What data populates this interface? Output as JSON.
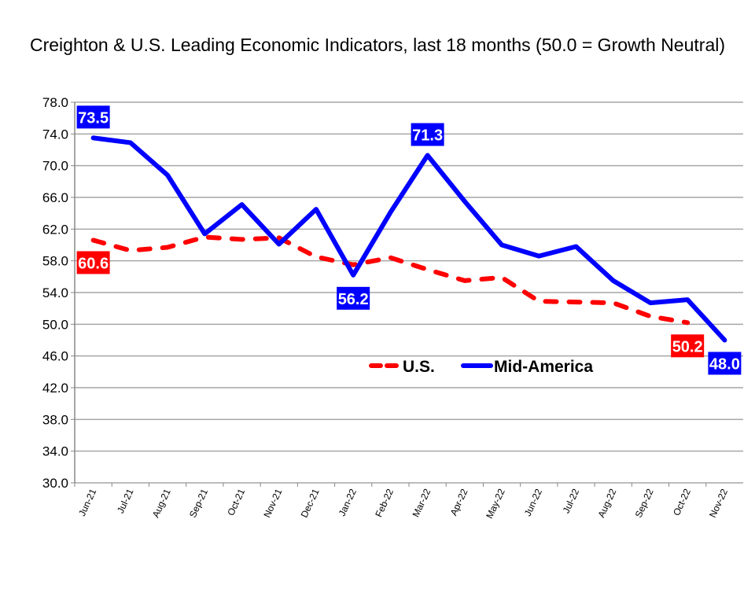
{
  "chart_data": {
    "type": "line",
    "title": "Creighton & U.S. Leading Economic Indicators, last 18 months (50.0 = Growth Neutral)",
    "categories": [
      "Jun-21",
      "Jul-21",
      "Aug-21",
      "Sep-21",
      "Oct-21",
      "Nov-21",
      "Dec-21",
      "Jan-22",
      "Feb-22",
      "Mar-22",
      "Apr-22",
      "May-22",
      "Jun-22",
      "Jul-22",
      "Aug-22",
      "Sep-22",
      "Oct-22",
      "Nov-22"
    ],
    "ylim": [
      30,
      78
    ],
    "yticks": [
      "30.0",
      "34.0",
      "38.0",
      "42.0",
      "46.0",
      "50.0",
      "54.0",
      "58.0",
      "62.0",
      "66.0",
      "70.0",
      "74.0",
      "78.0"
    ],
    "grid": true,
    "legend": "center-right",
    "series": [
      {
        "name": "U.S.",
        "color": "#ff0000",
        "style": "dashed",
        "values": [
          60.6,
          59.3,
          59.7,
          61.0,
          60.7,
          60.9,
          58.5,
          57.5,
          58.4,
          56.9,
          55.5,
          55.9,
          52.9,
          52.8,
          52.7,
          51.0,
          50.2,
          null
        ],
        "labels": [
          {
            "index": 0,
            "text": "60.6"
          },
          {
            "index": 16,
            "text": "50.2"
          }
        ]
      },
      {
        "name": "Mid-America",
        "color": "#0000ff",
        "style": "solid",
        "values": [
          73.5,
          72.9,
          68.8,
          61.4,
          65.1,
          60.1,
          64.5,
          56.2,
          64.1,
          71.3,
          65.5,
          60.0,
          58.6,
          59.8,
          55.5,
          52.7,
          53.1,
          48.0
        ],
        "labels": [
          {
            "index": 0,
            "text": "73.5"
          },
          {
            "index": 7,
            "text": "56.2"
          },
          {
            "index": 9,
            "text": "71.3"
          },
          {
            "index": 17,
            "text": "48.0"
          }
        ]
      }
    ]
  }
}
